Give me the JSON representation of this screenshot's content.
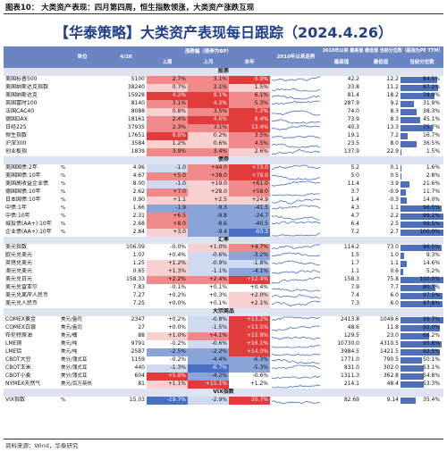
{
  "caption": "图表10：  大类资产表现：四月第四周，恒生指数领涨，大类资产涨跌互现",
  "title": {
    "brand": "华泰策略",
    "text": "大类资产表现每日跟踪（2024.4.26）"
  },
  "headers": {
    "unit": "单位",
    "date": "4/26",
    "chg_group": "涨跌幅（债券为BP）",
    "week": "上周",
    "month": "上月",
    "ytd": "本年",
    "trend": "2010年以来走势",
    "pct_group": "2010年以来 最高值 最低值 当前分位数（股指为PE TTM）",
    "high": "最高值",
    "low": "最低值",
    "pctile": "当前分位数"
  },
  "colors": {
    "up_strong": "#e23b3b",
    "up_mid": "#f08a8a",
    "up_light": "#f9d0d0",
    "down_light": "#cfdaf0",
    "down_mid": "#8aa4d8",
    "down_strong": "#4a6fc4",
    "bar": "#4f6fb8",
    "header": "#6b84c2"
  },
  "rows": [
    {
      "type": "section",
      "label": "股票"
    },
    {
      "name": "美国标普500",
      "unit": "",
      "val": "5100",
      "w": "2.7%",
      "m": "3.1%",
      "y": "6.9%",
      "hi": "42.2",
      "lo": "12.2",
      "pct": "84.5%",
      "p": 0.845,
      "cw": 2,
      "cm": 2,
      "cy": 3
    },
    {
      "name": "美国纳斯达克指数",
      "unit": "",
      "val": "38240",
      "w": "0.7%",
      "m": "2.1%",
      "y": "1.5%",
      "hi": "33.8",
      "lo": "11.2",
      "pct": "87.2%",
      "p": 0.872,
      "cw": 1,
      "cm": 2,
      "cy": 1
    },
    {
      "name": "美国纳斯达克",
      "unit": "",
      "val": "15928",
      "w": "4.2%",
      "m": "8.1%",
      "y": "6.1%",
      "hi": "81.4",
      "lo": "18.2",
      "pct": "78.0%",
      "p": 0.78,
      "cw": 3,
      "cm": 3,
      "cy": 2
    },
    {
      "name": "英国富时100",
      "unit": "",
      "val": "8140",
      "w": "3.1%",
      "m": "4.2%",
      "y": "5.3%",
      "hi": "287.9",
      "lo": "9.2",
      "pct": "31.9%",
      "p": 0.319,
      "cw": 2,
      "cm": 3,
      "cy": 2
    },
    {
      "name": "法国CAC40",
      "unit": "",
      "val": "8088",
      "w": "0.8%",
      "m": "3.5%",
      "y": "7.2%",
      "hi": "74.0",
      "lo": "8.3",
      "pct": "38.3%",
      "p": 0.383,
      "cw": 1,
      "cm": 2,
      "cy": 3
    },
    {
      "name": "德国DAX",
      "unit": "",
      "val": "18161",
      "w": "2.4%",
      "m": "4.6%",
      "y": "8.4%",
      "hi": "73.9",
      "lo": "8.3",
      "pct": "45.1%",
      "p": 0.451,
      "cw": 2,
      "cm": 3,
      "cy": 3
    },
    {
      "name": "日经225",
      "unit": "",
      "val": "37935",
      "w": "2.3%",
      "m": "3.1%",
      "y": "13.4%",
      "hi": "40.3",
      "lo": "13.3",
      "pct": "75.7%",
      "p": 0.757,
      "cw": 2,
      "cm": 2,
      "cy": 3
    },
    {
      "name": "恒生指数",
      "unit": "",
      "val": "17651",
      "w": "8.8%",
      "m": "0.2%",
      "y": "3.5%",
      "hi": "19.1",
      "lo": "7.2",
      "pct": "16.7%",
      "p": 0.167,
      "cw": 3,
      "cm": 1,
      "cy": 2
    },
    {
      "name": "沪深300",
      "unit": "",
      "val": "3584",
      "w": "1.2%",
      "m": "0.6%",
      "y": "4.5%",
      "hi": "23.5",
      "lo": "8.0",
      "pct": "36.5%",
      "p": 0.365,
      "cw": 1,
      "cm": 1,
      "cy": 2
    },
    {
      "name": "创业板指",
      "unit": "",
      "val": "1839",
      "w": "3.9%",
      "m": "3.4%",
      "y": "2.6%",
      "hi": "137.9",
      "lo": "22.9",
      "pct": "1.5%",
      "p": 0.015,
      "cw": 2,
      "cm": 2,
      "cy": 1
    },
    {
      "type": "section",
      "label": "债券"
    },
    {
      "name": "美国国债:2年",
      "unit": "%",
      "val": "4.96",
      "w": "-1.0",
      "m": "+44.0",
      "y": "+73.0",
      "hi": "5.2",
      "lo": "0.1",
      "pct": "1.6%",
      "p": 0.016,
      "cw": -1,
      "cm": 2,
      "cy": 3
    },
    {
      "name": "美国国债:10年",
      "unit": "%",
      "val": "4.67",
      "w": "+5.0",
      "m": "+38.0",
      "y": "+79.0",
      "hi": "5.0",
      "lo": "0.5",
      "pct": "2.8%",
      "p": 0.028,
      "cw": 2,
      "cm": 2,
      "cy": 3
    },
    {
      "name": "美国高收益企业债",
      "unit": "%",
      "val": "8.00",
      "w": "-1.0",
      "m": "+19.0",
      "y": "+61.0",
      "hi": "11.4",
      "lo": "3.9",
      "pct": "21.6%",
      "p": 0.216,
      "cw": -1,
      "cm": 1,
      "cy": 2
    },
    {
      "name": "德国国债:10年",
      "unit": "%",
      "val": "2.62",
      "w": "+7.0",
      "m": "+28.0",
      "y": "+58.0",
      "hi": "3.7",
      "lo": "-0.9",
      "pct": "11.7%",
      "p": 0.117,
      "cw": 2,
      "cm": 1,
      "cy": 2
    },
    {
      "name": "日本国债:10年",
      "unit": "%",
      "val": "0.90",
      "w": "+1.1",
      "m": "+2.5",
      "y": "+24.9",
      "hi": "1.4",
      "lo": "-0.3",
      "pct": "14.0%",
      "p": 0.14,
      "cw": 1,
      "cm": 1,
      "cy": 1
    },
    {
      "name": "中债:1年",
      "unit": "%",
      "val": "1.66",
      "w": "-1.9",
      "m": "-9.3",
      "y": "-41.5",
      "hi": "4.3",
      "lo": "1.1",
      "pct": "96.5%",
      "p": 0.965,
      "cw": -2,
      "cm": -2,
      "cy": -2
    },
    {
      "name": "中债:10年",
      "unit": "%",
      "val": "2.31",
      "w": "+6.5",
      "m": "-9.8",
      "y": "-24.7",
      "hi": "4.7",
      "lo": "2.2",
      "pct": "99.2%",
      "p": 0.992,
      "cw": 2,
      "cm": -2,
      "cy": -2
    },
    {
      "name": "城投债(AA+):10年",
      "unit": "%",
      "val": "2.68",
      "w": "+8.0",
      "m": "-8.6",
      "y": "-40.5",
      "hi": "6.4",
      "lo": "2.5",
      "pct": "99.5%",
      "p": 0.995,
      "cw": 2,
      "cm": -2,
      "cy": -2
    },
    {
      "name": "企业债(AA+):10年",
      "unit": "%",
      "val": "2.84",
      "w": "+3.0",
      "m": "-9.4",
      "y": "-60.3",
      "hi": "7.2",
      "lo": "2.7",
      "pct": "100.0%",
      "p": 1.0,
      "cw": 1,
      "cm": -2,
      "cy": -3
    },
    {
      "type": "section",
      "label": "汇率"
    },
    {
      "name": "美元指数",
      "unit": "",
      "val": "106.09",
      "w": "-0.0%",
      "m": "+1.0%",
      "y": "+4.7%",
      "hi": "114.2",
      "lo": "73.0",
      "pct": "96.5%",
      "p": 0.965,
      "cw": 0,
      "cm": 1,
      "cy": 2
    },
    {
      "name": "欧元兑美元",
      "unit": "",
      "val": "1.07",
      "w": "+0.4%",
      "m": "-0.6%",
      "y": "-3.2%",
      "hi": "1.5",
      "lo": "1.0",
      "pct": "9.3%",
      "p": 0.093,
      "cw": 0,
      "cm": -1,
      "cy": -2
    },
    {
      "name": "英镑兑美元",
      "unit": "",
      "val": "1.25",
      "w": "+1.2%",
      "m": "-0.9%",
      "y": "-1.8%",
      "hi": "1.7",
      "lo": "1.1",
      "pct": "14.6%",
      "p": 0.146,
      "cw": 1,
      "cm": -1,
      "cy": -1
    },
    {
      "name": "澳元兑美元",
      "unit": "",
      "val": "0.65",
      "w": "+1.3%",
      "m": "-1.1%",
      "y": "-4.1%",
      "hi": "1.1",
      "lo": "0.6",
      "pct": "5.2%",
      "p": 0.052,
      "cw": 1,
      "cm": -1,
      "cy": -2
    },
    {
      "name": "美元兑日元",
      "unit": "",
      "val": "158.33",
      "w": "+2.2%",
      "m": "+2.4%",
      "y": "+12.4%",
      "hi": "158.3",
      "lo": "75.8",
      "pct": "100.0%",
      "p": 1.0,
      "cw": 2,
      "cm": 2,
      "cy": 3
    },
    {
      "name": "美元兑雷亚尔",
      "unit": "",
      "val": "7.83",
      "w": "-0.1%",
      "m": "+0.1%",
      "y": "+0.4%",
      "hi": "7.9",
      "lo": "7.7",
      "pct": "80.7%",
      "p": 0.807,
      "cw": 0,
      "cm": 0,
      "cy": 0
    },
    {
      "name": "美元兑离岸人民币",
      "unit": "",
      "val": "7.27",
      "w": "+0.2%",
      "m": "+0.3%",
      "y": "+2.0%",
      "hi": "7.4",
      "lo": "6.0",
      "pct": "97.5%",
      "p": 0.975,
      "cw": 0,
      "cm": 0,
      "cy": 1
    },
    {
      "name": "美元兑人民币",
      "unit": "",
      "val": "7.25",
      "w": "+0.0%",
      "m": "+0.1%",
      "y": "+2.1%",
      "hi": "7.3",
      "lo": "6.0",
      "pct": "97.8%",
      "p": 0.978,
      "cw": 0,
      "cm": 0,
      "cy": 1
    },
    {
      "type": "section",
      "label": "大宗商品"
    },
    {
      "name": "COMEX黄金",
      "unit": "美元/盎司",
      "val": "2347",
      "w": "+0.2%",
      "m": "-0.8%",
      "y": "+13.2%",
      "hi": "2413.8",
      "lo": "1049.6",
      "pct": "99.7%",
      "p": 0.997,
      "cw": 0,
      "cm": -1,
      "cy": 3
    },
    {
      "name": "COMEX白银",
      "unit": "美元/盎司",
      "val": "27",
      "w": "+0.0%",
      "m": "-1.5%",
      "y": "+13.5%",
      "hi": "48.6",
      "lo": "11.8",
      "pct": "92.0%",
      "p": 0.92,
      "cw": 0,
      "cm": -1,
      "cy": 3
    },
    {
      "name": "布伦特原油",
      "unit": "美元/桶",
      "val": "88",
      "w": "+1.0%",
      "m": "+4.1%",
      "y": "+15.8%",
      "hi": "129.5",
      "lo": "23.0",
      "pct": "66.2%",
      "p": 0.662,
      "cw": 1,
      "cm": 2,
      "cy": 3
    },
    {
      "name": "LME铜",
      "unit": "美元/吨",
      "val": "9791",
      "w": "-0.2%",
      "m": "-0.6%",
      "y": "+16.1%",
      "hi": "10730.0",
      "lo": "4310.5",
      "pct": "95.8%",
      "p": 0.958,
      "cw": 0,
      "cm": -1,
      "cy": 3
    },
    {
      "name": "LME铝",
      "unit": "美元/吨",
      "val": "2587",
      "w": "-2.5%",
      "m": "-2.2%",
      "y": "+14.0%",
      "hi": "3984.5",
      "lo": "1421.5",
      "pct": "92.5%",
      "p": 0.925,
      "cw": -2,
      "cm": -2,
      "cy": 3
    },
    {
      "name": "CBOT大豆",
      "unit": "美分/蒲式耳",
      "val": "1159",
      "w": "-0.2%",
      "m": "-4.4%",
      "y": "-6.3%",
      "hi": "1771.0",
      "lo": "790.5",
      "pct": "50.1%",
      "p": 0.501,
      "cw": 0,
      "cm": -2,
      "cy": -2
    },
    {
      "name": "CBOT玉米",
      "unit": "美分/蒲式耳",
      "val": "440",
      "w": "-1.3%",
      "m": "-6.7%",
      "y": "-5.3%",
      "hi": "831.0",
      "lo": "302.0",
      "pct": "53.1%",
      "p": 0.531,
      "cw": -1,
      "cm": -3,
      "cy": -2
    },
    {
      "name": "CBOT小麦",
      "unit": "美分/蒲式耳",
      "val": "604",
      "w": "+5.8%",
      "m": "-4.2%",
      "y": "-0.6%",
      "hi": "1311.3",
      "lo": "362.8",
      "pct": "54.8%",
      "p": 0.548,
      "cw": 3,
      "cm": -2,
      "cy": 0
    },
    {
      "name": "NYMEX天然气",
      "unit": "美元/百万英热",
      "val": "81",
      "w": "+1.1%",
      "m": "+15.1%",
      "y": "+1.2%",
      "hi": "214.1",
      "lo": "48.4",
      "pct": "53.3%",
      "p": 0.533,
      "cw": 1,
      "cm": 3,
      "cy": 0
    },
    {
      "type": "section",
      "label": "VIX指数"
    },
    {
      "name": "VIX指数",
      "unit": "%",
      "val": "15.03",
      "w": "-19.7%",
      "m": "-2.9%",
      "y": "20.7%",
      "hi": "82.69",
      "lo": "9.14",
      "pct": "35.4%",
      "p": 0.354,
      "cw": -3,
      "cm": -1,
      "cy": 3
    }
  ],
  "footer": "资料来源：Wind，华泰研究"
}
